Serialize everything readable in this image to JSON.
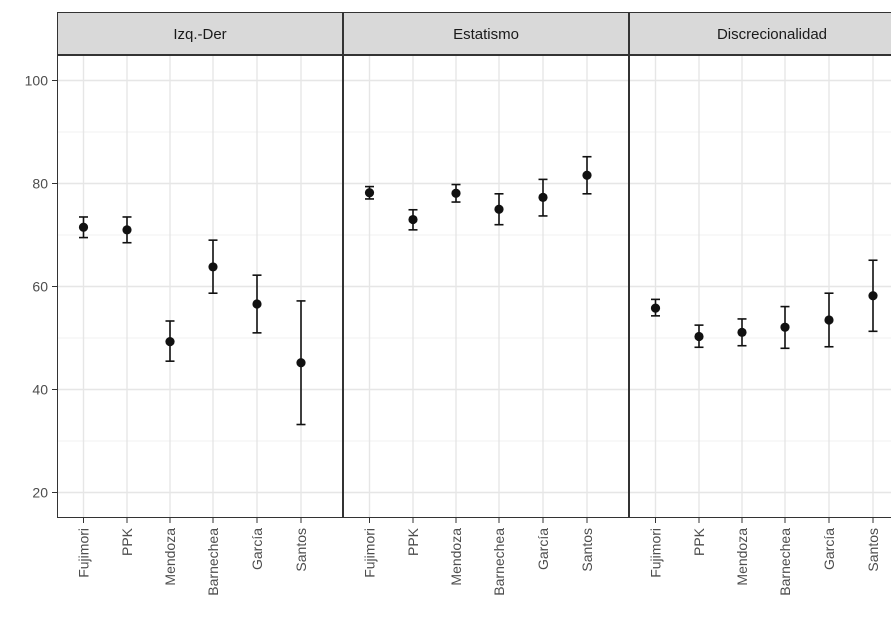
{
  "chart_data": {
    "type": "scatter",
    "variant": "point-with-errorbars, faceted",
    "categories": [
      "Fujimori",
      "PPK",
      "Mendoza",
      "Barnechea",
      "García",
      "Santos"
    ],
    "ylim": [
      16,
      105
    ],
    "yticks": [
      20,
      40,
      60,
      80,
      100
    ],
    "grid": true,
    "point_color": "#111111",
    "panels": [
      {
        "title": "Izq.-Der",
        "points": [
          {
            "x": "Fujimori",
            "y": 71.5,
            "low": 69.5,
            "high": 73.5
          },
          {
            "x": "PPK",
            "y": 71.0,
            "low": 68.5,
            "high": 73.5
          },
          {
            "x": "Mendoza",
            "y": 49.3,
            "low": 45.5,
            "high": 53.3
          },
          {
            "x": "Barnechea",
            "y": 63.8,
            "low": 58.7,
            "high": 69.0
          },
          {
            "x": "García",
            "y": 56.6,
            "low": 51.0,
            "high": 62.2
          },
          {
            "x": "Santos",
            "y": 45.2,
            "low": 33.2,
            "high": 57.2
          }
        ]
      },
      {
        "title": "Estatismo",
        "points": [
          {
            "x": "Fujimori",
            "y": 78.2,
            "low": 77.0,
            "high": 79.4
          },
          {
            "x": "PPK",
            "y": 73.0,
            "low": 71.0,
            "high": 74.9
          },
          {
            "x": "Mendoza",
            "y": 78.1,
            "low": 76.4,
            "high": 79.8
          },
          {
            "x": "Barnechea",
            "y": 75.0,
            "low": 72.0,
            "high": 78.0
          },
          {
            "x": "García",
            "y": 77.3,
            "low": 73.7,
            "high": 80.8
          },
          {
            "x": "Santos",
            "y": 81.6,
            "low": 78.0,
            "high": 85.2
          }
        ]
      },
      {
        "title": "Discrecionalidad",
        "points": [
          {
            "x": "Fujimori",
            "y": 55.8,
            "low": 54.3,
            "high": 57.5
          },
          {
            "x": "PPK",
            "y": 50.3,
            "low": 48.2,
            "high": 52.5
          },
          {
            "x": "Mendoza",
            "y": 51.1,
            "low": 48.5,
            "high": 53.7
          },
          {
            "x": "Barnechea",
            "y": 52.1,
            "low": 48.0,
            "high": 56.1
          },
          {
            "x": "García",
            "y": 53.5,
            "low": 48.3,
            "high": 58.7
          },
          {
            "x": "Santos",
            "y": 58.2,
            "low": 51.3,
            "high": 65.1
          }
        ]
      }
    ]
  }
}
